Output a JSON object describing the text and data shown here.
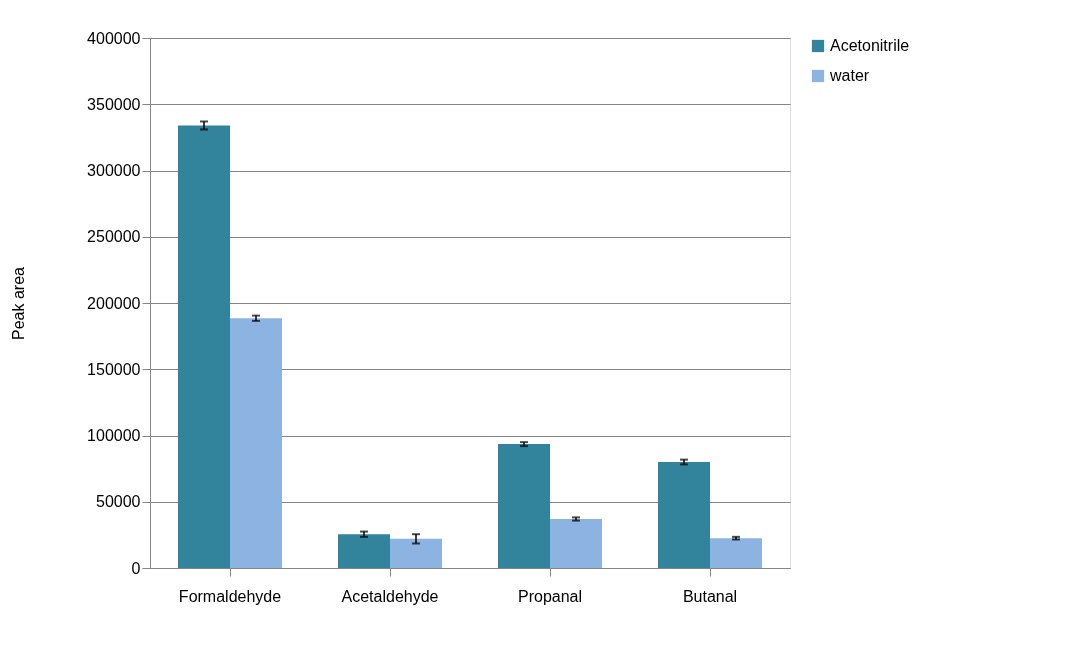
{
  "chart_data": {
    "type": "bar",
    "ylabel": "Peak area",
    "categories": [
      "Formaldehyde",
      "Acetaldehyde",
      "Propanal",
      "Butanal"
    ],
    "series": [
      {
        "name": "Acetonitrile",
        "color": "#31849b",
        "values": [
          334000,
          25500,
          93500,
          80000
        ],
        "errors": [
          3000,
          2000,
          1500,
          1800
        ]
      },
      {
        "name": "water",
        "color": "#8db3e2",
        "values": [
          188500,
          22000,
          37000,
          22500
        ],
        "errors": [
          2000,
          3500,
          1200,
          1000
        ]
      }
    ],
    "ylim": [
      0,
      400000
    ],
    "yticks": [
      0,
      50000,
      100000,
      150000,
      200000,
      250000,
      300000,
      350000,
      400000
    ],
    "grid": "y",
    "legend": "right"
  }
}
